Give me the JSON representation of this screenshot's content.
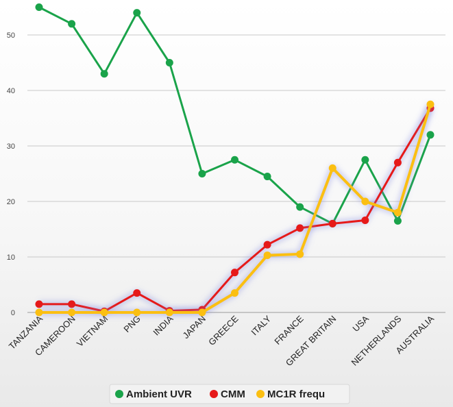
{
  "chart_data": {
    "type": "line",
    "title": "",
    "xlabel": "",
    "ylabel": "",
    "ylim": [
      0,
      55
    ],
    "yticks": [
      0,
      10,
      20,
      30,
      40,
      50
    ],
    "grid": true,
    "legend_position": "bottom-center",
    "categories": [
      "TANZANIA",
      "CAMEROON",
      "VIETNAM",
      "PNG",
      "INDIA",
      "JAPAN",
      "GREECE",
      "ITALY",
      "FRANCE",
      "GREAT BRITAIN",
      "USA",
      "NETHERLANDS",
      "AUSTRALIA"
    ],
    "series": [
      {
        "name": "Ambient UVR",
        "color": "#1aa34a",
        "values": [
          55,
          52,
          43,
          54,
          45,
          25,
          27.5,
          24.5,
          19,
          16,
          27.5,
          16.5,
          32
        ]
      },
      {
        "name": "CMM",
        "color": "#e61919",
        "values": [
          1.5,
          1.5,
          0.2,
          3.5,
          0.3,
          0.5,
          7.2,
          12.2,
          15.2,
          16,
          16.6,
          27,
          36.8
        ]
      },
      {
        "name": "MC1R frequ",
        "color": "#fbbf12",
        "values": [
          0,
          0,
          0,
          0,
          0,
          0,
          3.5,
          10.3,
          10.5,
          26,
          20,
          18,
          37.5
        ]
      }
    ]
  }
}
